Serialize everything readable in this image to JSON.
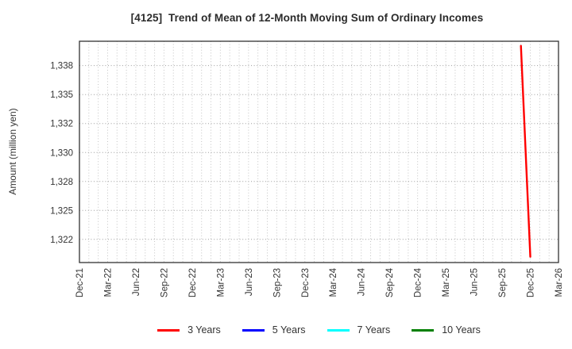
{
  "title": "[4125]  Trend of Mean of 12-Month Moving Sum of Ordinary Incomes",
  "chart_data": {
    "type": "line",
    "title": "[4125]  Trend of Mean of 12-Month Moving Sum of Ordinary Incomes",
    "xlabel": "",
    "ylabel": "Amount (million yen)",
    "grid": true,
    "legend_position": "bottom",
    "ylim": [
      1320.5,
      1339.6
    ],
    "y_ticks": [
      {
        "value": 1337.5,
        "label": "1,338"
      },
      {
        "value": 1335.0,
        "label": "1,335"
      },
      {
        "value": 1332.5,
        "label": "1,332"
      },
      {
        "value": 1330.0,
        "label": "1,330"
      },
      {
        "value": 1327.5,
        "label": "1,328"
      },
      {
        "value": 1325.0,
        "label": "1,325"
      },
      {
        "value": 1322.5,
        "label": "1,322"
      }
    ],
    "x_tick_labels": [
      "Dec-21",
      "Mar-22",
      "Jun-22",
      "Sep-22",
      "Dec-22",
      "Mar-23",
      "Jun-23",
      "Sep-23",
      "Dec-23",
      "Mar-24",
      "Jun-24",
      "Sep-24",
      "Dec-24",
      "Mar-25",
      "Jun-25",
      "Sep-25",
      "Dec-25",
      "Mar-26"
    ],
    "x_tick_month_step": 3,
    "months_span": 51,
    "series": [
      {
        "name": "3 Years",
        "color": "#ff0000",
        "points": [
          {
            "month": "Nov-25",
            "month_index": 47,
            "value": 1339.2
          },
          {
            "month": "Dec-25",
            "month_index": 48,
            "value": 1321.0
          }
        ]
      },
      {
        "name": "5 Years",
        "color": "#0000ff",
        "points": []
      },
      {
        "name": "7 Years",
        "color": "#00ffff",
        "points": []
      },
      {
        "name": "10 Years",
        "color": "#008000",
        "points": []
      }
    ]
  }
}
